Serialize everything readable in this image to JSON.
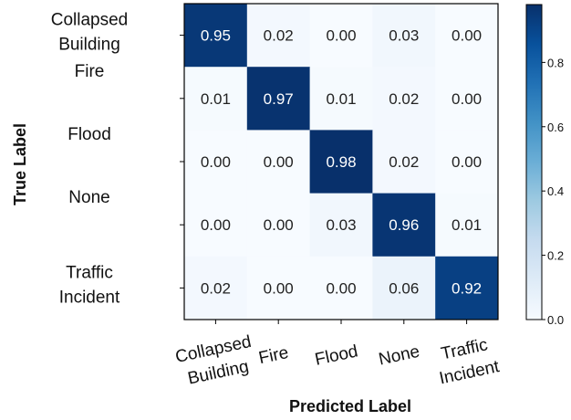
{
  "chart_data": {
    "type": "heatmap",
    "title": "",
    "xlabel": "Predicted Label",
    "ylabel": "True Label",
    "x_categories": [
      [
        "Collapsed",
        "Building"
      ],
      [
        "Fire"
      ],
      [
        "Flood"
      ],
      [
        "None"
      ],
      [
        "Traffic",
        "Incident"
      ]
    ],
    "y_categories": [
      [
        "Collapsed",
        "Building"
      ],
      [
        "Fire"
      ],
      [
        "Flood"
      ],
      [
        "None"
      ],
      [
        "Traffic",
        "Incident"
      ]
    ],
    "values": [
      [
        0.95,
        0.02,
        0.0,
        0.03,
        0.0
      ],
      [
        0.01,
        0.97,
        0.01,
        0.02,
        0.0
      ],
      [
        0.0,
        0.0,
        0.98,
        0.02,
        0.0
      ],
      [
        0.0,
        0.0,
        0.03,
        0.96,
        0.01
      ],
      [
        0.02,
        0.0,
        0.0,
        0.06,
        0.92
      ]
    ],
    "colorbar": {
      "min": 0.0,
      "max": 0.98,
      "ticks": [
        "0.0",
        "0.2",
        "0.4",
        "0.6",
        "0.8"
      ],
      "colormap": "Blues",
      "low_color": "#f7fbff",
      "high_color": "#08306b"
    },
    "grid": false
  }
}
